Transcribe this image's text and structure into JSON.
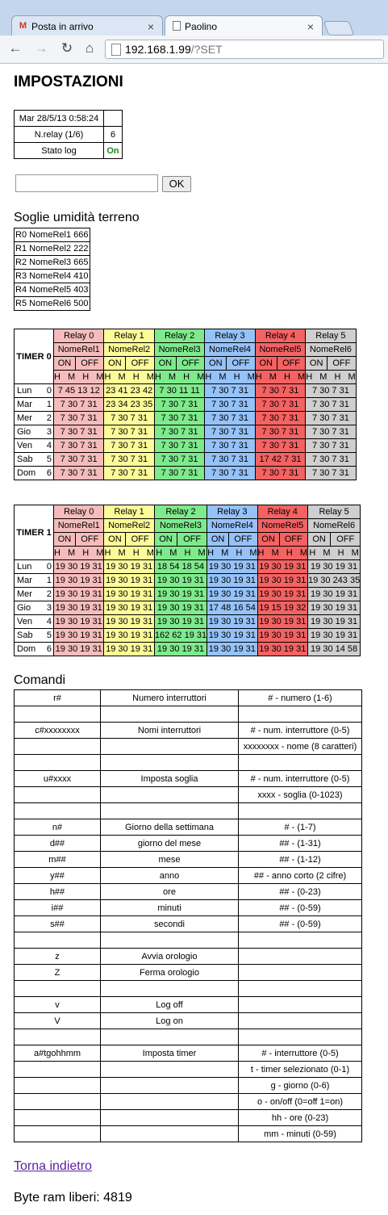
{
  "browser": {
    "tabs": [
      {
        "label": "Posta in arrivo",
        "icon": "gmail-icon"
      },
      {
        "label": "Paolino",
        "icon": "page-icon"
      }
    ],
    "url_host": "192.168.1.99",
    "url_path": "/?SET"
  },
  "page_title": "IMPOSTAZIONI",
  "info": {
    "datetime": "Mar 28/5/13 0:58:24",
    "nrelay_label": "N.relay (1/6)",
    "nrelay_value": "6",
    "log_label": "Stato log",
    "log_value": "On"
  },
  "command_input": {
    "value": "",
    "ok_label": "OK"
  },
  "soglie": {
    "title": "Soglie umidità terreno",
    "rows": [
      {
        "id": "R0",
        "name": "NomeRel1",
        "value": "666"
      },
      {
        "id": "R1",
        "name": "NomeRel2",
        "value": "222"
      },
      {
        "id": "R2",
        "name": "NomeRel3",
        "value": "665"
      },
      {
        "id": "R3",
        "name": "NomeRel4",
        "value": "410"
      },
      {
        "id": "R4",
        "name": "NomeRel5",
        "value": "403"
      },
      {
        "id": "R5",
        "name": "NomeRel6",
        "value": "500"
      }
    ]
  },
  "timers": [
    {
      "label": "TIMER 0",
      "relays": [
        "Relay 0",
        "Relay 1",
        "Relay 2",
        "Relay 3",
        "Relay 4",
        "Relay 5"
      ],
      "names": [
        "NomeRel1",
        "NomeRel2",
        "NomeRel3",
        "NomeRel4",
        "NomeRel5",
        "NomeRel6"
      ],
      "on_label": "ON",
      "off_label": "OFF",
      "hm": [
        "H",
        "M",
        "H",
        "M"
      ],
      "days": [
        {
          "day": "Lun",
          "n": "0",
          "cells": [
            "7 45 13 12",
            "23 41 23 42",
            "7 30 11 11",
            "7 30 7 31",
            "7 30 7 31",
            "7 30 7 31"
          ]
        },
        {
          "day": "Mar",
          "n": "1",
          "cells": [
            "7 30 7 31",
            "23 34 23 35",
            "7 30 7 31",
            "7 30 7 31",
            "7 30 7 31",
            "7 30 7 31"
          ]
        },
        {
          "day": "Mer",
          "n": "2",
          "cells": [
            "7 30 7 31",
            "7 30 7 31",
            "7 30 7 31",
            "7 30 7 31",
            "7 30 7 31",
            "7 30 7 31"
          ]
        },
        {
          "day": "Gio",
          "n": "3",
          "cells": [
            "7 30 7 31",
            "7 30 7 31",
            "7 30 7 31",
            "7 30 7 31",
            "7 30 7 31",
            "7 30 7 31"
          ]
        },
        {
          "day": "Ven",
          "n": "4",
          "cells": [
            "7 30 7 31",
            "7 30 7 31",
            "7 30 7 31",
            "7 30 7 31",
            "7 30 7 31",
            "7 30 7 31"
          ]
        },
        {
          "day": "Sab",
          "n": "5",
          "cells": [
            "7 30 7 31",
            "7 30 7 31",
            "7 30 7 31",
            "7 30 7 31",
            "17 42 7 31",
            "7 30 7 31"
          ]
        },
        {
          "day": "Dom",
          "n": "6",
          "cells": [
            "7 30 7 31",
            "7 30 7 31",
            "7 30 7 31",
            "7 30 7 31",
            "7 30 7 31",
            "7 30 7 31"
          ]
        }
      ]
    },
    {
      "label": "TIMER 1",
      "relays": [
        "Relay 0",
        "Relay 1",
        "Relay 2",
        "Relay 3",
        "Relay 4",
        "Relay 5"
      ],
      "names": [
        "NomeRel1",
        "NomeRel2",
        "NomeRel3",
        "NomeRel4",
        "NomeRel5",
        "NomeRel6"
      ],
      "on_label": "ON",
      "off_label": "OFF",
      "hm": [
        "H",
        "M",
        "H",
        "M"
      ],
      "days": [
        {
          "day": "Lun",
          "n": "0",
          "cells": [
            "19 30 19 31",
            "19 30 19 31",
            "18 54 18 54",
            "19 30 19 31",
            "19 30 19 31",
            "19 30 19 31"
          ]
        },
        {
          "day": "Mar",
          "n": "1",
          "cells": [
            "19 30 19 31",
            "19 30 19 31",
            "19 30 19 31",
            "19 30 19 31",
            "19 30 19 31",
            "19 30 243 35"
          ]
        },
        {
          "day": "Mer",
          "n": "2",
          "cells": [
            "19 30 19 31",
            "19 30 19 31",
            "19 30 19 31",
            "19 30 19 31",
            "19 30 19 31",
            "19 30 19 31"
          ]
        },
        {
          "day": "Gio",
          "n": "3",
          "cells": [
            "19 30 19 31",
            "19 30 19 31",
            "19 30 19 31",
            "17 48 16 54",
            "19 15 19 32",
            "19 30 19 31"
          ]
        },
        {
          "day": "Ven",
          "n": "4",
          "cells": [
            "19 30 19 31",
            "19 30 19 31",
            "19 30 19 31",
            "19 30 19 31",
            "19 30 19 31",
            "19 30 19 31"
          ]
        },
        {
          "day": "Sab",
          "n": "5",
          "cells": [
            "19 30 19 31",
            "19 30 19 31",
            "162 62 19 31",
            "19 30 19 31",
            "19 30 19 31",
            "19 30 19 31"
          ]
        },
        {
          "day": "Dom",
          "n": "6",
          "cells": [
            "19 30 19 31",
            "19 30 19 31",
            "19 30 19 31",
            "19 30 19 31",
            "19 30 19 31",
            "19 30 14 58"
          ]
        }
      ]
    }
  ],
  "colors": {
    "relay0": "#f6bcbc",
    "relay1": "#fbfb99",
    "relay2": "#7fea8c",
    "relay3": "#95c2f8",
    "relay4": "#f46262",
    "relay5": "#cfcfcf"
  },
  "comandi": {
    "title": "Comandi",
    "rows": [
      [
        "r#",
        "Numero interruttori",
        "# - numero (1-6)"
      ],
      [
        "",
        "",
        ""
      ],
      [
        "c#xxxxxxxx",
        "Nomi interruttori",
        "# - num. interruttore (0-5)"
      ],
      [
        "",
        "",
        "xxxxxxxx - nome (8 caratteri)"
      ],
      [
        "",
        "",
        ""
      ],
      [
        "u#xxxx",
        "Imposta soglia",
        "# - num. interruttore (0-5)"
      ],
      [
        "",
        "",
        "xxxx - soglia (0-1023)"
      ],
      [
        "",
        "",
        ""
      ],
      [
        "n#",
        "Giorno della settimana",
        "# - (1-7)"
      ],
      [
        "d##",
        "giorno del mese",
        "## - (1-31)"
      ],
      [
        "m##",
        "mese",
        "## - (1-12)"
      ],
      [
        "y##",
        "anno",
        "## - anno corto (2 cifre)"
      ],
      [
        "h##",
        "ore",
        "## - (0-23)"
      ],
      [
        "i##",
        "minuti",
        "## - (0-59)"
      ],
      [
        "s##",
        "secondi",
        "## - (0-59)"
      ],
      [
        "",
        "",
        ""
      ],
      [
        "z",
        "Avvia orologio",
        ""
      ],
      [
        "Z",
        "Ferma orologio",
        ""
      ],
      [
        "",
        "",
        ""
      ],
      [
        "v",
        "Log off",
        ""
      ],
      [
        "V",
        "Log on",
        ""
      ],
      [
        "",
        "",
        ""
      ],
      [
        "a#tgohhmm",
        "Imposta timer",
        "# - interruttore (0-5)"
      ],
      [
        "",
        "",
        "t - timer selezionato (0-1)"
      ],
      [
        "",
        "",
        "g - giorno (0-6)"
      ],
      [
        "",
        "",
        "o - on/off (0=off 1=on)"
      ],
      [
        "",
        "",
        "hh - ore (0-23)"
      ],
      [
        "",
        "",
        "mm - minuti (0-59)"
      ]
    ]
  },
  "back_link": "Torna indietro",
  "ram": "Byte ram liberi: 4819"
}
